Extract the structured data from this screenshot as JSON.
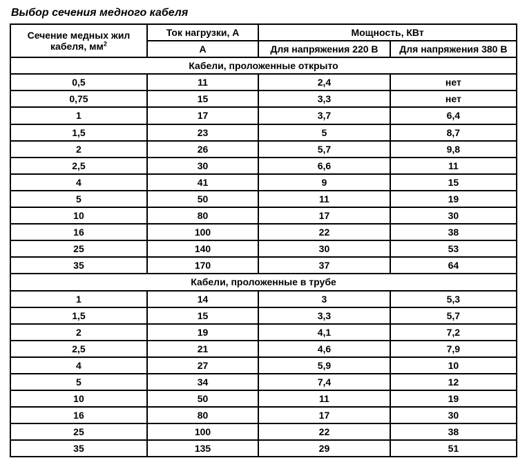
{
  "title": "Выбор сечения медного кабеля",
  "table": {
    "type": "table",
    "border_color": "#000000",
    "background_color": "#ffffff",
    "text_color": "#000000",
    "font_family": "Arial",
    "header_fontsize": 14,
    "cell_fontsize": 14,
    "column_widths_percent": [
      27,
      22,
      26,
      25
    ],
    "columns": {
      "section_label_line1": "Сечение медных жил",
      "section_label_line2": "кабеля, мм",
      "section_label_sup": "2",
      "current_group": "Ток нагрузки, А",
      "current_unit": "А",
      "power_group": "Мощность, КВт",
      "power_220": "Для напряжения 220 В",
      "power_380": "Для напряжения 380 В"
    },
    "sections": [
      {
        "heading": "Кабели, проложенные открыто",
        "rows": [
          {
            "sec": "0,5",
            "cur": "11",
            "p220": "2,4",
            "p380": "нет"
          },
          {
            "sec": "0,75",
            "cur": "15",
            "p220": "3,3",
            "p380": "нет"
          },
          {
            "sec": "1",
            "cur": "17",
            "p220": "3,7",
            "p380": "6,4"
          },
          {
            "sec": "1,5",
            "cur": "23",
            "p220": "5",
            "p380": "8,7"
          },
          {
            "sec": "2",
            "cur": "26",
            "p220": "5,7",
            "p380": "9,8"
          },
          {
            "sec": "2,5",
            "cur": "30",
            "p220": "6,6",
            "p380": "11"
          },
          {
            "sec": "4",
            "cur": "41",
            "p220": "9",
            "p380": "15"
          },
          {
            "sec": "5",
            "cur": "50",
            "p220": "11",
            "p380": "19"
          },
          {
            "sec": "10",
            "cur": "80",
            "p220": "17",
            "p380": "30"
          },
          {
            "sec": "16",
            "cur": "100",
            "p220": "22",
            "p380": "38"
          },
          {
            "sec": "25",
            "cur": "140",
            "p220": "30",
            "p380": "53"
          },
          {
            "sec": "35",
            "cur": "170",
            "p220": "37",
            "p380": "64"
          }
        ]
      },
      {
        "heading": "Кабели, проложенные в трубе",
        "rows": [
          {
            "sec": "1",
            "cur": "14",
            "p220": "3",
            "p380": "5,3"
          },
          {
            "sec": "1,5",
            "cur": "15",
            "p220": "3,3",
            "p380": "5,7"
          },
          {
            "sec": "2",
            "cur": "19",
            "p220": "4,1",
            "p380": "7,2"
          },
          {
            "sec": "2,5",
            "cur": "21",
            "p220": "4,6",
            "p380": "7,9"
          },
          {
            "sec": "4",
            "cur": "27",
            "p220": "5,9",
            "p380": "10"
          },
          {
            "sec": "5",
            "cur": "34",
            "p220": "7,4",
            "p380": "12"
          },
          {
            "sec": "10",
            "cur": "50",
            "p220": "11",
            "p380": "19"
          },
          {
            "sec": "16",
            "cur": "80",
            "p220": "17",
            "p380": "30"
          },
          {
            "sec": "25",
            "cur": "100",
            "p220": "22",
            "p380": "38"
          },
          {
            "sec": "35",
            "cur": "135",
            "p220": "29",
            "p380": "51"
          }
        ]
      }
    ]
  }
}
